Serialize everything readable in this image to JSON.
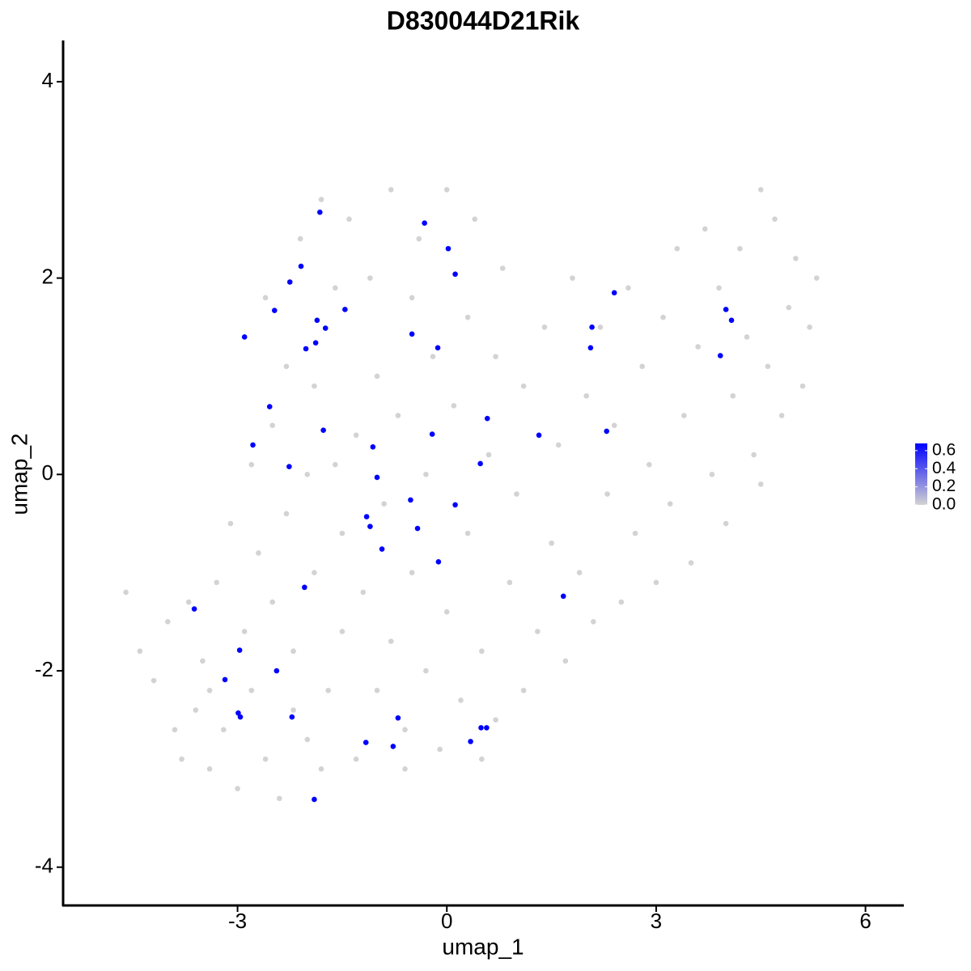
{
  "chart_data": {
    "type": "scatter",
    "title": "D830044D21Rik",
    "x_label": "umap_1",
    "y_label": "umap_2",
    "xlim": [
      -5.5,
      6.55
    ],
    "ylim": [
      -4.39,
      4.42
    ],
    "xticks": [
      -3,
      0,
      3,
      6
    ],
    "yticks": [
      -4,
      -2,
      0,
      2,
      4
    ],
    "series": [
      {
        "color": "#d3d3d3",
        "x": [
          -4.6,
          -4.4,
          -4.2,
          -4.0,
          -3.9,
          -3.8,
          -3.6,
          -3.5,
          -3.4,
          -3.3,
          -3.2,
          -3.1,
          -3.0,
          -2.9,
          -2.8,
          -2.8,
          -2.7,
          -2.6,
          -2.5,
          -2.5,
          -2.4,
          -2.3,
          -2.3,
          -2.2,
          -2.1,
          -2.0,
          -2.0,
          -1.9,
          -1.9,
          -1.8,
          -1.8,
          -1.7,
          -1.6,
          -1.5,
          -1.5,
          -1.4,
          -1.3,
          -1.3,
          -1.2,
          -1.1,
          -1.0,
          -1.0,
          -0.9,
          -0.8,
          -0.8,
          -0.7,
          -0.6,
          -0.5,
          -0.5,
          -0.4,
          -0.3,
          -0.3,
          -0.2,
          -0.1,
          0.0,
          0.0,
          0.1,
          0.2,
          0.3,
          0.3,
          0.4,
          0.5,
          0.6,
          0.7,
          0.7,
          0.8,
          0.9,
          1.0,
          1.1,
          1.1,
          1.3,
          1.4,
          1.5,
          1.6,
          1.7,
          1.8,
          1.9,
          2.0,
          2.1,
          2.2,
          2.3,
          2.4,
          2.5,
          2.6,
          2.7,
          2.8,
          2.9,
          3.0,
          3.1,
          3.2,
          3.3,
          3.4,
          3.5,
          3.6,
          3.7,
          3.8,
          3.9,
          4.0,
          4.1,
          4.2,
          4.3,
          4.4,
          4.5,
          4.5,
          4.6,
          4.7,
          4.8,
          4.9,
          5.0,
          5.1,
          5.2,
          5.3,
          -3.7,
          -3.4,
          -2.6,
          -2.2,
          -1.6,
          0.5,
          -0.6
        ],
        "values": [
          -1.2,
          -1.8,
          -2.1,
          -1.5,
          -2.6,
          -2.9,
          -2.4,
          -1.9,
          -3.0,
          -1.1,
          -2.6,
          -0.5,
          -3.2,
          -1.6,
          -2.2,
          0.1,
          -0.8,
          -2.9,
          -1.3,
          0.5,
          -3.3,
          -0.4,
          1.1,
          -1.8,
          2.4,
          -2.7,
          0.0,
          -1.0,
          0.9,
          -3.0,
          2.8,
          -2.2,
          1.9,
          -0.6,
          -1.6,
          2.6,
          0.4,
          -2.9,
          -1.2,
          2.0,
          -2.2,
          1.0,
          -0.3,
          2.9,
          -1.7,
          0.6,
          -2.6,
          1.8,
          -1.0,
          2.4,
          -2.0,
          0.0,
          1.2,
          -2.8,
          2.9,
          -1.4,
          0.7,
          -2.3,
          1.6,
          -0.6,
          2.6,
          -1.8,
          0.2,
          -2.5,
          1.2,
          2.1,
          -1.1,
          -0.2,
          -2.2,
          0.9,
          -1.6,
          1.5,
          -0.7,
          0.3,
          -1.9,
          2.0,
          -1.0,
          0.8,
          -1.5,
          1.5,
          -0.2,
          0.5,
          -1.3,
          1.9,
          -0.6,
          1.1,
          0.1,
          -1.1,
          1.6,
          -0.3,
          2.3,
          0.6,
          -0.9,
          1.3,
          2.5,
          0.0,
          1.9,
          -0.5,
          0.8,
          2.3,
          1.4,
          0.2,
          2.9,
          -0.1,
          1.1,
          2.6,
          0.6,
          1.7,
          2.2,
          0.9,
          1.5,
          2.0,
          -1.3,
          -2.2,
          1.8,
          -2.4,
          0.1,
          -2.9,
          -3.0
        ]
      },
      {
        "color": "#0000ff",
        "x": [
          -1.82,
          -0.32,
          0.02,
          0.12,
          -2.09,
          -2.25,
          -2.47,
          -2.9,
          -1.86,
          -1.46,
          -1.74,
          -1.88,
          -2.02,
          -0.5,
          -0.13,
          2.4,
          2.08,
          2.06,
          4.0,
          4.08,
          3.92,
          -2.54,
          -1.77,
          0.58,
          -0.21,
          1.32,
          2.29,
          -2.78,
          -1.06,
          -2.26,
          0.48,
          -1.0,
          -0.52,
          0.12,
          -1.15,
          -1.1,
          -0.42,
          -0.93,
          -0.12,
          -2.04,
          1.67,
          -3.62,
          -2.97,
          -2.44,
          -3.18,
          -2.99,
          -2.96,
          -2.22,
          -0.7,
          0.49,
          0.57,
          -1.16,
          -0.77,
          0.34,
          -1.9
        ],
        "values": [
          2.67,
          2.56,
          2.3,
          2.04,
          2.12,
          1.96,
          1.67,
          1.4,
          1.57,
          1.68,
          1.49,
          1.34,
          1.28,
          1.43,
          1.29,
          1.85,
          1.5,
          1.29,
          1.68,
          1.57,
          1.21,
          0.69,
          0.45,
          0.57,
          0.41,
          0.4,
          0.44,
          0.3,
          0.28,
          0.08,
          0.11,
          -0.03,
          -0.26,
          -0.31,
          -0.43,
          -0.53,
          -0.55,
          -0.76,
          -0.89,
          -1.15,
          -1.24,
          -1.37,
          -1.79,
          -2.0,
          -2.09,
          -2.43,
          -2.47,
          -2.47,
          -2.48,
          -2.58,
          -2.58,
          -2.73,
          -2.77,
          -2.72,
          -3.31
        ]
      }
    ],
    "colorbar": {
      "colors": [
        "#d3d3d3",
        "#0000ff"
      ],
      "lim": [
        0,
        0.68
      ],
      "ticks": [
        {
          "value": 0,
          "label": "0.0"
        },
        {
          "value": 0.2,
          "label": "0.2"
        },
        {
          "value": 0.4,
          "label": "0.4"
        },
        {
          "value": 0.6,
          "label": "0.6"
        }
      ]
    }
  }
}
